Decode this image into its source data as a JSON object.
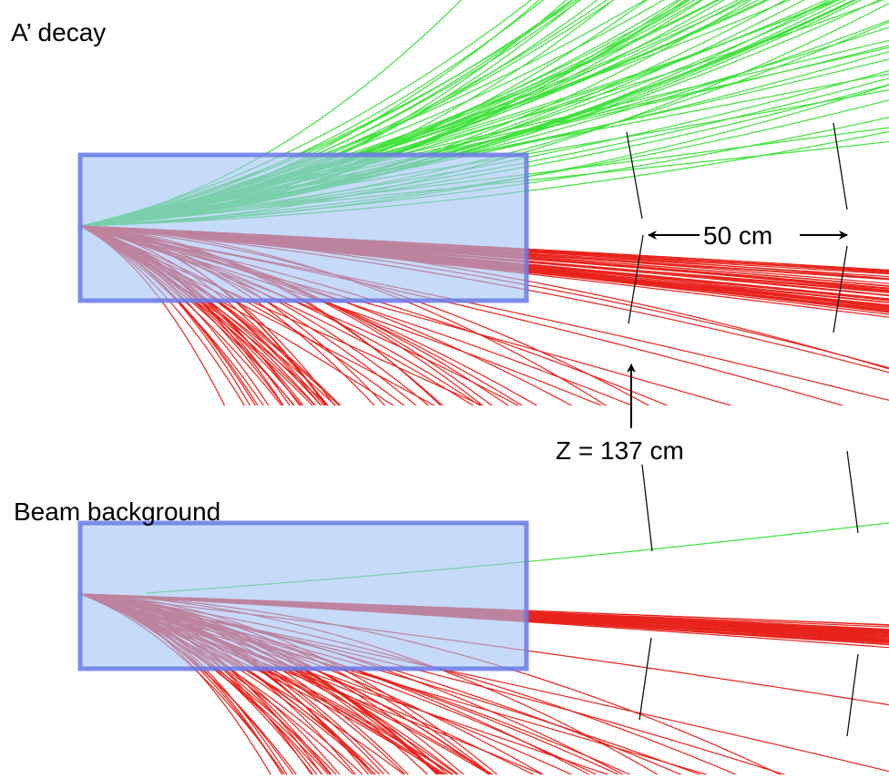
{
  "panels": [
    {
      "label": "A’ decay"
    },
    {
      "label": "Beam background"
    }
  ],
  "annotations": {
    "width": "50 cm",
    "z": "Z = 137 cm"
  }
}
